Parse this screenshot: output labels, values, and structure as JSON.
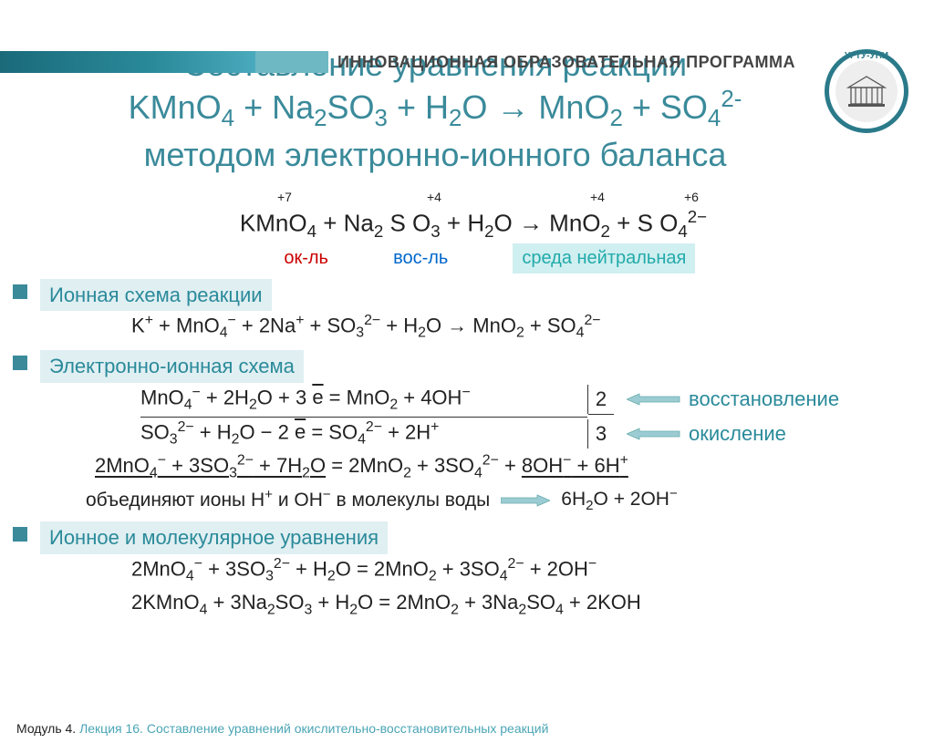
{
  "header": {
    "program": "ИННОВАЦИОННАЯ ОБРАЗОВАТЕЛЬНАЯ ПРОГРАММА",
    "logo": "УГТУ-УПИ"
  },
  "title_lines": [
    "Составление уравнения реакции",
    "KMnO₄ + Na₂SO₃ + H₂O → MnO₂ + SO₄²⁻",
    "методом электронно-ионного баланса"
  ],
  "ox_states": {
    "mn1": "+7",
    "s1": "+4",
    "mn2": "+4",
    "s2": "+6"
  },
  "main_eq_html": "KMnO<sub>4</sub> + Na<sub>2</sub> S O<sub>3</sub> + H<sub>2</sub>O → MnO<sub>2</sub> + S O<sub>4</sub><sup>2−</sup>",
  "redox": {
    "ok": "ок-ль",
    "vos": "вос-ль",
    "env": "среда нейтральная"
  },
  "sections": {
    "ionic": "Ионная схема реакции",
    "eis": "Электронно-ионная схема",
    "mol": "Ионное и молекулярное уравнения"
  },
  "ionic_scheme_html": "K<sup>+</sup> + MnO<sub>4</sub><sup>−</sup> + 2Na<sup>+</sup> + SO<sub>3</sub><sup>2−</sup> + H<sub>2</sub>O → MnO<sub>2</sub> + SO<sub>4</sub><sup>2−</sup>",
  "half1_html": "MnO<sub>4</sub><sup>−</sup> + 2H<sub>2</sub>O + 3 <span class=\"ebar\">e</span> = MnO<sub>2</sub> + 4OH<sup>−</sup>",
  "half2_html": "SO<sub>3</sub><sup>2−</sup> + H<sub>2</sub>O − 2 <span class=\"ebar\">e</span> = SO<sub>4</sub><sup>2−</sup> + 2H<sup>+</sup>",
  "half_coef": {
    "a": "2",
    "b": "3"
  },
  "half_label": {
    "red": "восстановление",
    "ox": "окисление"
  },
  "sum_left_html": "2MnO<sub>4</sub><sup>−</sup> + 3SO<sub>3</sub><sup>2−</sup> + 7H<sub>2</sub>O",
  "sum_mid_html": " = 2MnO<sub>2</sub> + 3SO<sub>4</sub><sup>2−</sup> + ",
  "sum_right_html": "8OH<sup>−</sup> + 6H<sup>+</sup>",
  "combine_text_html": "объединяют ионы H<sup>+</sup> и OH<sup>−</sup> в молекулы воды",
  "combine_result_html": "6H<sub>2</sub>O + 2OH<sup>−</sup>",
  "final_ionic_html": "2MnO<sub>4</sub><sup>−</sup> + 3SO<sub>3</sub><sup>2−</sup> + H<sub>2</sub>O = 2MnO<sub>2</sub> + 3SO<sub>4</sub><sup>2−</sup> + 2OH<sup>−</sup>",
  "final_mol_html": "2KMnO<sub>4</sub> + 3Na<sub>2</sub>SO<sub>3</sub> + H<sub>2</sub>O = 2MnO<sub>2</sub> + 3Na<sub>2</sub>SO<sub>4</sub> + 2KOH",
  "footer": {
    "module": "Модуль 4.",
    "lecture": "Лекция 16. Составление уравнений окислительно-восстановительных реакций"
  },
  "colors": {
    "accent": "#3a8a9a",
    "band_dark": "#1a6a7a",
    "band_light": "#6eb8c4",
    "red": "#c00",
    "blue": "#06c",
    "hl_bg": "#e0eff2"
  }
}
